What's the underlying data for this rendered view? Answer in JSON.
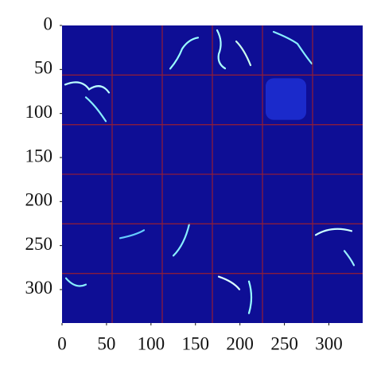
{
  "chart_data": {
    "type": "image",
    "xlim": [
      0,
      338
    ],
    "ylim": [
      338,
      0
    ],
    "xticks": [
      0,
      50,
      100,
      150,
      200,
      250,
      300
    ],
    "yticks": [
      0,
      50,
      100,
      150,
      200,
      250,
      300
    ],
    "color": "#0e0e95",
    "grid": false
  }
}
